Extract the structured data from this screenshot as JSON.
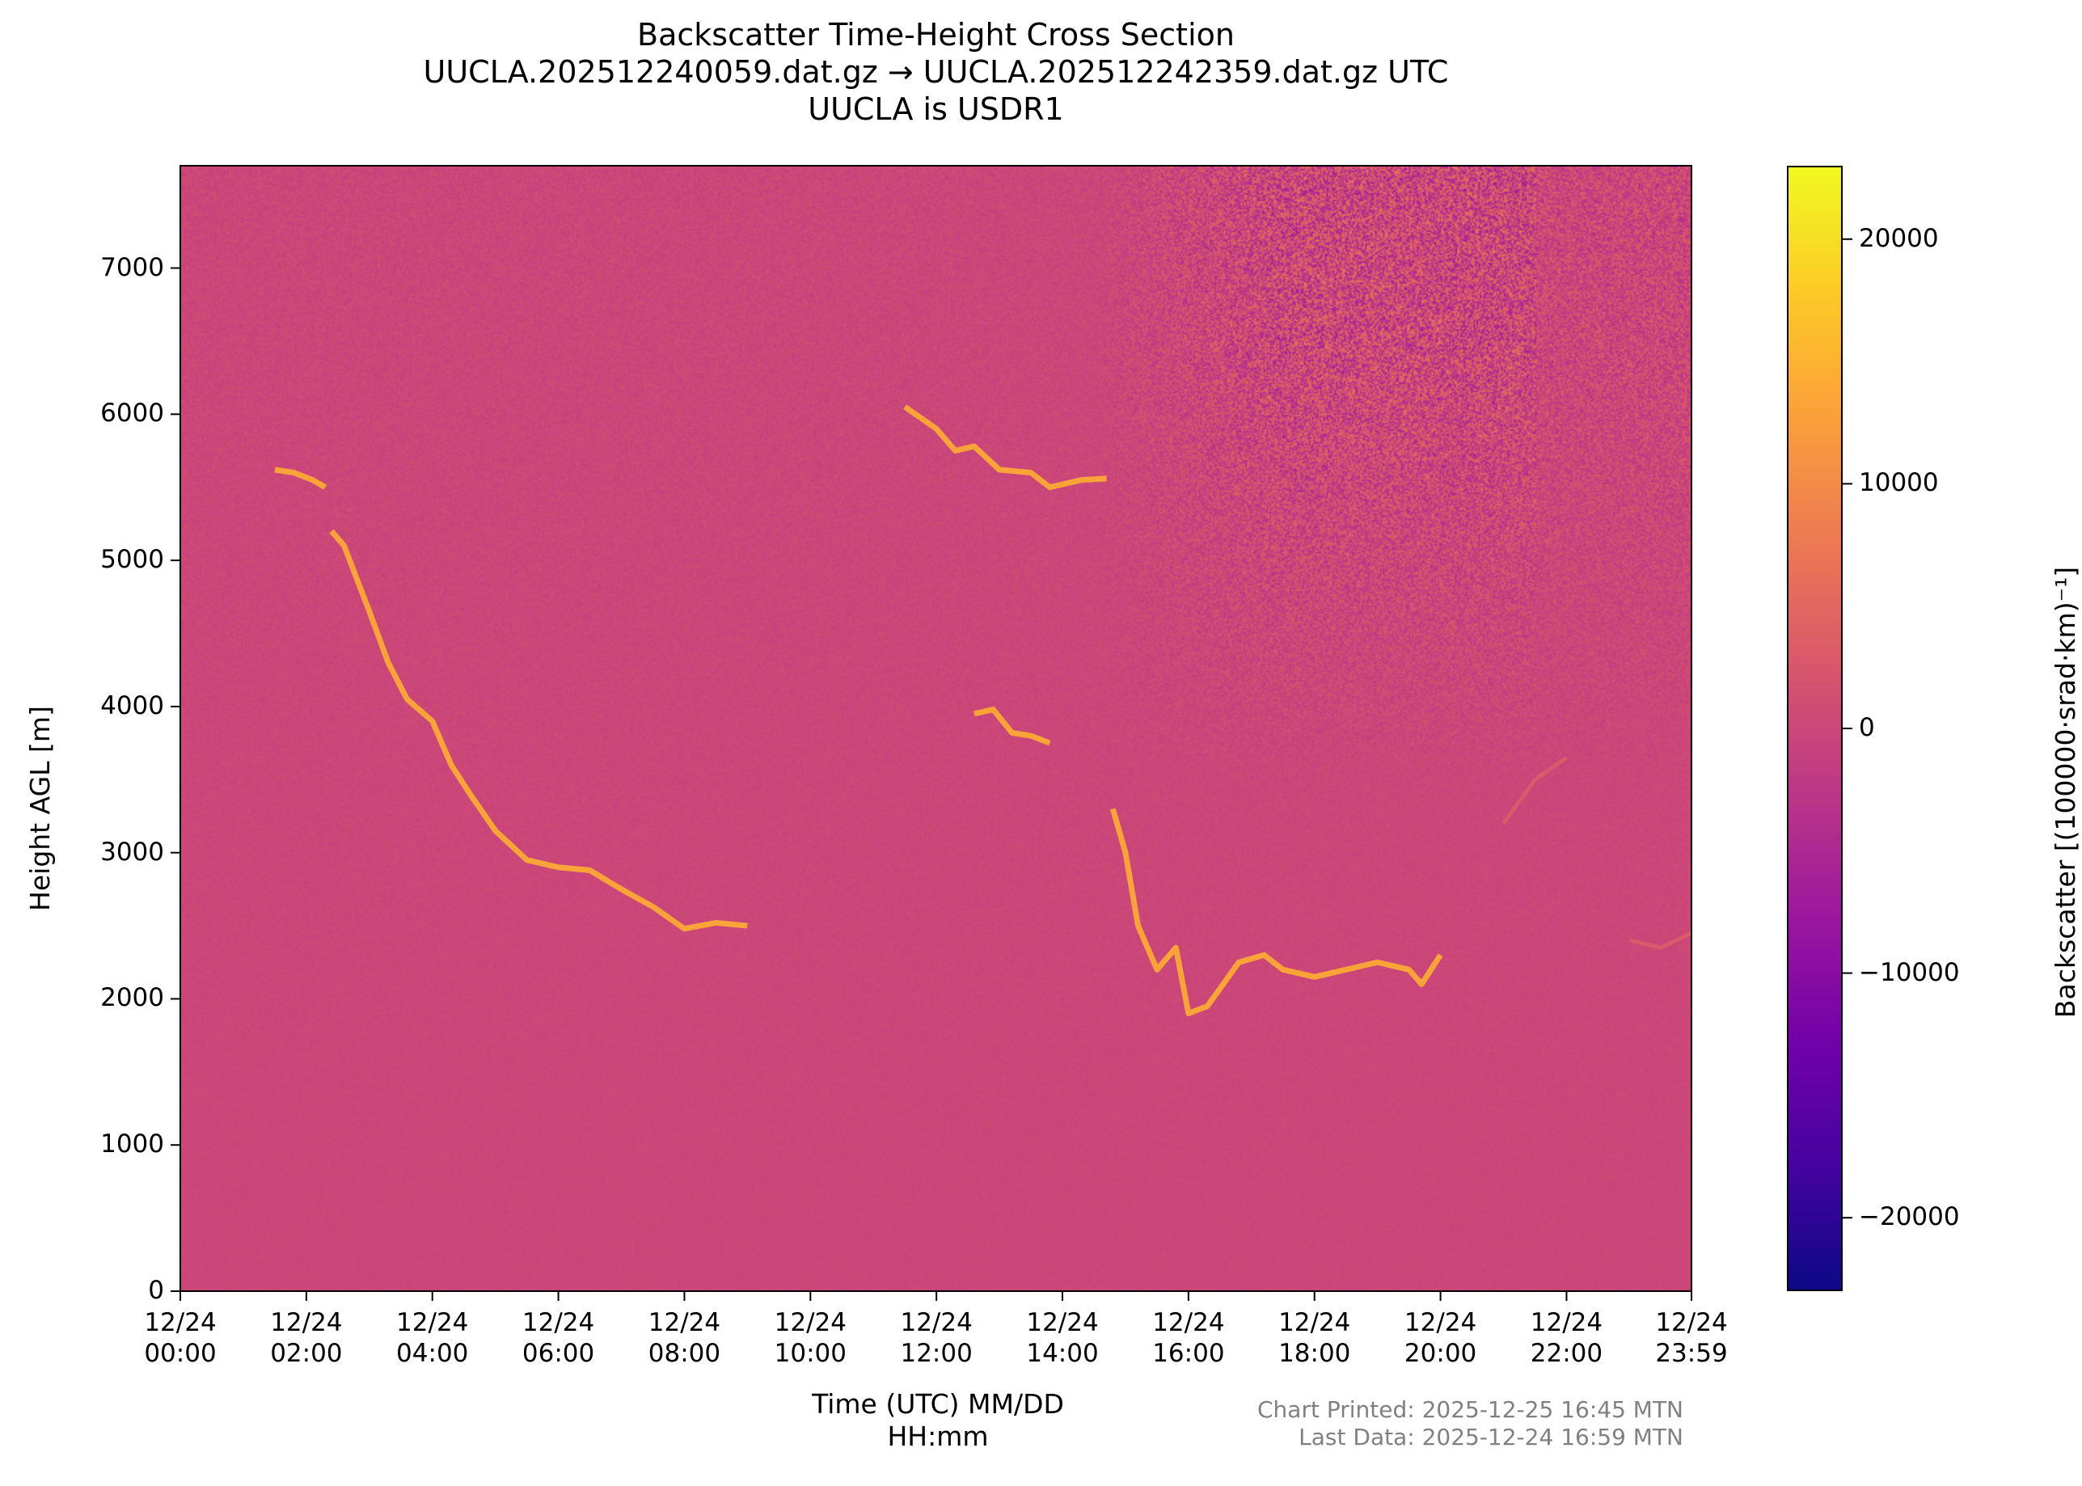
{
  "chart_data": {
    "type": "heatmap",
    "title": "Backscatter Time-Height Cross Section",
    "subtitle": "UUCLA.202512240059.dat.gz → UUCLA.202512242359.dat.gz UTC",
    "subtitle2": "UUCLA is USDR1",
    "xlabel": "Time (UTC) MM/DD\nHH:mm",
    "ylabel": "Height AGL [m]",
    "xlim_hours": [
      0,
      23.983
    ],
    "ylim": [
      0,
      7700
    ],
    "x_ticks": [
      {
        "value": 0,
        "label": "12/24\n00:00"
      },
      {
        "value": 2,
        "label": "12/24\n02:00"
      },
      {
        "value": 4,
        "label": "12/24\n04:00"
      },
      {
        "value": 6,
        "label": "12/24\n06:00"
      },
      {
        "value": 8,
        "label": "12/24\n08:00"
      },
      {
        "value": 10,
        "label": "12/24\n10:00"
      },
      {
        "value": 12,
        "label": "12/24\n12:00"
      },
      {
        "value": 14,
        "label": "12/24\n14:00"
      },
      {
        "value": 16,
        "label": "12/24\n16:00"
      },
      {
        "value": 18,
        "label": "12/24\n18:00"
      },
      {
        "value": 20,
        "label": "12/24\n20:00"
      },
      {
        "value": 22,
        "label": "12/24\n22:00"
      },
      {
        "value": 23.983,
        "label": "12/24\n23:59"
      }
    ],
    "y_ticks": [
      0,
      1000,
      2000,
      3000,
      4000,
      5000,
      6000,
      7000
    ],
    "colorbar": {
      "label": "Backscatter [(100000·srad·km)⁻¹]",
      "range": [
        -23000,
        23000
      ],
      "ticks": [
        {
          "value": 20000,
          "label": "20000"
        },
        {
          "value": 10000,
          "label": "10000"
        },
        {
          "value": 0,
          "label": "0"
        },
        {
          "value": -10000,
          "label": "−10000"
        },
        {
          "value": -20000,
          "label": "−20000"
        }
      ],
      "colormap": "plasma"
    },
    "background_value": 0,
    "cloud_layers": [
      {
        "name": "layer-early-high",
        "value": 14000,
        "points": [
          [
            1.5,
            5620
          ],
          [
            1.8,
            5600
          ],
          [
            2.1,
            5550
          ],
          [
            2.3,
            5500
          ]
        ]
      },
      {
        "name": "layer-descending",
        "value": 14000,
        "points": [
          [
            2.4,
            5200
          ],
          [
            2.6,
            5100
          ],
          [
            3.0,
            4650
          ],
          [
            3.3,
            4300
          ],
          [
            3.6,
            4050
          ],
          [
            4.0,
            3900
          ],
          [
            4.3,
            3600
          ],
          [
            4.6,
            3400
          ],
          [
            5.0,
            3150
          ],
          [
            5.5,
            2950
          ],
          [
            6.0,
            2900
          ],
          [
            6.5,
            2880
          ],
          [
            7.0,
            2750
          ],
          [
            7.5,
            2630
          ],
          [
            8.0,
            2480
          ],
          [
            8.5,
            2520
          ],
          [
            9.0,
            2500
          ]
        ]
      },
      {
        "name": "layer-midday-high",
        "value": 14000,
        "points": [
          [
            11.5,
            6050
          ],
          [
            12.0,
            5900
          ],
          [
            12.3,
            5750
          ],
          [
            12.6,
            5780
          ],
          [
            13.0,
            5620
          ],
          [
            13.5,
            5600
          ],
          [
            13.8,
            5500
          ],
          [
            14.3,
            5550
          ],
          [
            14.7,
            5560
          ]
        ]
      },
      {
        "name": "layer-midday-mid",
        "value": 14000,
        "points": [
          [
            12.6,
            3950
          ],
          [
            12.9,
            3980
          ],
          [
            13.2,
            3820
          ],
          [
            13.5,
            3800
          ],
          [
            13.8,
            3750
          ]
        ]
      },
      {
        "name": "layer-evening",
        "value": 14000,
        "points": [
          [
            14.8,
            3300
          ],
          [
            15.0,
            3000
          ],
          [
            15.2,
            2500
          ],
          [
            15.5,
            2200
          ],
          [
            15.8,
            2350
          ],
          [
            16.0,
            1900
          ],
          [
            16.3,
            1950
          ],
          [
            16.8,
            2250
          ],
          [
            17.2,
            2300
          ],
          [
            17.5,
            2200
          ],
          [
            18.0,
            2150
          ],
          [
            18.5,
            2200
          ],
          [
            19.0,
            2250
          ],
          [
            19.5,
            2200
          ],
          [
            19.7,
            2100
          ],
          [
            20.0,
            2300
          ]
        ]
      },
      {
        "name": "layer-late-faint",
        "value": 5000,
        "points": [
          [
            21.0,
            3200
          ],
          [
            21.5,
            3500
          ],
          [
            22.0,
            3650
          ]
        ]
      },
      {
        "name": "layer-night-faint",
        "value": 5000,
        "points": [
          [
            23.0,
            2400
          ],
          [
            23.5,
            2350
          ],
          [
            23.98,
            2450
          ]
        ]
      }
    ],
    "noise_region": "upper-right (above ~3500 m after 15:00, strongest above 6000 m 17:00–21:00)"
  },
  "footer": {
    "printed": "Chart Printed: 2025-12-25 16:45 MTN",
    "last_data": "Last Data: 2025-12-24 16:59 MTN"
  }
}
